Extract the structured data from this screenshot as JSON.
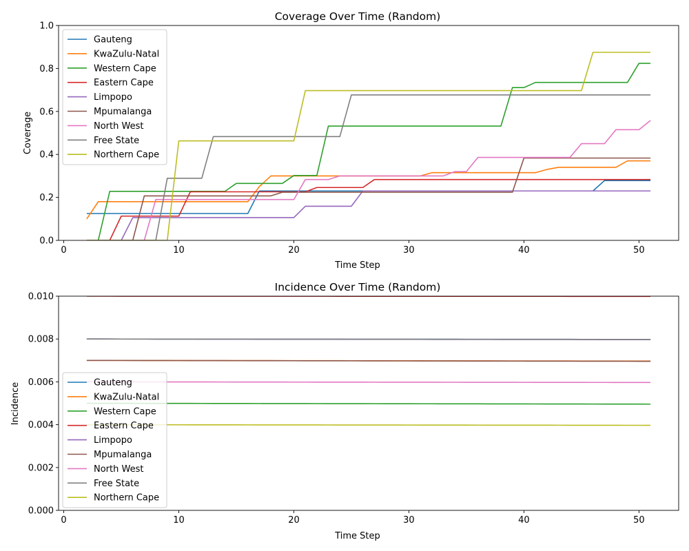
{
  "colors": [
    "#1f77b4",
    "#ff7f0e",
    "#2ca02c",
    "#d62728",
    "#9467bd",
    "#8c564b",
    "#e377c2",
    "#7f7f7f",
    "#bcbd22"
  ],
  "chart_data": [
    {
      "type": "line",
      "title": "Coverage Over Time (Random)",
      "xlabel": "Time Step",
      "ylabel": "Coverage",
      "xlim": [
        -0.45,
        53.45
      ],
      "ylim": [
        0,
        1
      ],
      "xticks": [
        "0",
        "10",
        "20",
        "30",
        "40",
        "50"
      ],
      "yticks": [
        "0.0",
        "0.2",
        "0.4",
        "0.6",
        "0.8",
        "1.0"
      ],
      "grid": false,
      "legend": "upper-left",
      "series": [
        {
          "name": "Gauteng",
          "steps": [
            [
              2,
              0.125
            ],
            [
              16,
              0.125
            ],
            [
              17,
              0.23
            ],
            [
              46,
              0.23
            ],
            [
              47,
              0.278
            ],
            [
              51,
              0.278
            ]
          ]
        },
        {
          "name": "KwaZulu-Natal",
          "steps": [
            [
              2,
              0.1
            ],
            [
              3,
              0.18
            ],
            [
              16,
              0.18
            ],
            [
              17,
              0.25
            ],
            [
              18,
              0.3
            ],
            [
              26,
              0.3
            ],
            [
              27,
              0.3
            ],
            [
              31,
              0.3
            ],
            [
              32,
              0.315
            ],
            [
              40,
              0.315
            ],
            [
              41,
              0.315
            ],
            [
              42,
              0.33
            ],
            [
              43,
              0.34
            ],
            [
              48,
              0.34
            ],
            [
              49,
              0.37
            ],
            [
              51,
              0.37
            ]
          ]
        },
        {
          "name": "Western Cape",
          "steps": [
            [
              2,
              0
            ],
            [
              3,
              0
            ],
            [
              4,
              0.228
            ],
            [
              14,
              0.228
            ],
            [
              15,
              0.265
            ],
            [
              19,
              0.265
            ],
            [
              20,
              0.302
            ],
            [
              22,
              0.302
            ],
            [
              23,
              0.532
            ],
            [
              38,
              0.532
            ],
            [
              39,
              0.711
            ],
            [
              40,
              0.711
            ],
            [
              41,
              0.735
            ],
            [
              49,
              0.735
            ],
            [
              50,
              0.824
            ],
            [
              51,
              0.824
            ]
          ]
        },
        {
          "name": "Eastern Cape",
          "steps": [
            [
              2,
              0
            ],
            [
              4,
              0
            ],
            [
              5,
              0.113
            ],
            [
              10,
              0.113
            ],
            [
              11,
              0.226
            ],
            [
              21,
              0.226
            ],
            [
              22,
              0.246
            ],
            [
              26,
              0.246
            ],
            [
              27,
              0.283
            ],
            [
              51,
              0.283
            ]
          ]
        },
        {
          "name": "Limpopo",
          "steps": [
            [
              2,
              0
            ],
            [
              5,
              0
            ],
            [
              6,
              0.106
            ],
            [
              20,
              0.106
            ],
            [
              21,
              0.159
            ],
            [
              25,
              0.159
            ],
            [
              26,
              0.23
            ],
            [
              51,
              0.23
            ]
          ]
        },
        {
          "name": "Mpumalanga",
          "steps": [
            [
              2,
              0
            ],
            [
              6,
              0
            ],
            [
              7,
              0.207
            ],
            [
              18,
              0.207
            ],
            [
              19,
              0.224
            ],
            [
              39,
              0.224
            ],
            [
              40,
              0.383
            ],
            [
              51,
              0.383
            ]
          ]
        },
        {
          "name": "North West",
          "steps": [
            [
              2,
              0
            ],
            [
              7,
              0
            ],
            [
              8,
              0.19
            ],
            [
              20,
              0.19
            ],
            [
              21,
              0.283
            ],
            [
              22,
              0.283
            ],
            [
              23,
              0.283
            ],
            [
              24,
              0.3
            ],
            [
              33,
              0.3
            ],
            [
              34,
              0.32
            ],
            [
              35,
              0.32
            ],
            [
              36,
              0.386
            ],
            [
              44,
              0.386
            ],
            [
              45,
              0.45
            ],
            [
              47,
              0.45
            ],
            [
              48,
              0.515
            ],
            [
              50,
              0.515
            ],
            [
              51,
              0.558
            ]
          ]
        },
        {
          "name": "Free State",
          "steps": [
            [
              2,
              0
            ],
            [
              8,
              0
            ],
            [
              9,
              0.289
            ],
            [
              12,
              0.289
            ],
            [
              13,
              0.483
            ],
            [
              24,
              0.483
            ],
            [
              25,
              0.677
            ],
            [
              51,
              0.677
            ]
          ]
        },
        {
          "name": "Northern Cape",
          "steps": [
            [
              2,
              0
            ],
            [
              9,
              0
            ],
            [
              10,
              0.463
            ],
            [
              20,
              0.463
            ],
            [
              21,
              0.697
            ],
            [
              45,
              0.697
            ],
            [
              46,
              0.875
            ],
            [
              51,
              0.875
            ]
          ]
        }
      ]
    },
    {
      "type": "line",
      "title": "Incidence Over Time (Random)",
      "xlabel": "Time Step",
      "ylabel": "Incidence",
      "xlim": [
        -0.45,
        53.45
      ],
      "ylim": [
        0,
        0.01
      ],
      "xticks": [
        "0",
        "10",
        "20",
        "30",
        "40",
        "50"
      ],
      "yticks": [
        "0.000",
        "0.002",
        "0.004",
        "0.006",
        "0.008",
        "0.010"
      ],
      "grid": false,
      "legend": "center-left",
      "series": [
        {
          "name": "Gauteng",
          "start": 0.008,
          "end": 0.00798
        },
        {
          "name": "KwaZulu-Natal",
          "start": 0.007,
          "end": 0.00697
        },
        {
          "name": "Western Cape",
          "start": 0.005,
          "end": 0.00496
        },
        {
          "name": "Eastern Cape",
          "start": 0.01,
          "end": 0.00999
        },
        {
          "name": "Limpopo",
          "start": 0.008,
          "end": 0.00797
        },
        {
          "name": "Mpumalanga",
          "start": 0.007,
          "end": 0.00696
        },
        {
          "name": "North West",
          "start": 0.006,
          "end": 0.00597
        },
        {
          "name": "Free State",
          "start": 0.008,
          "end": 0.00798
        },
        {
          "name": "Northern Cape",
          "start": 0.004,
          "end": 0.00397
        }
      ]
    }
  ]
}
